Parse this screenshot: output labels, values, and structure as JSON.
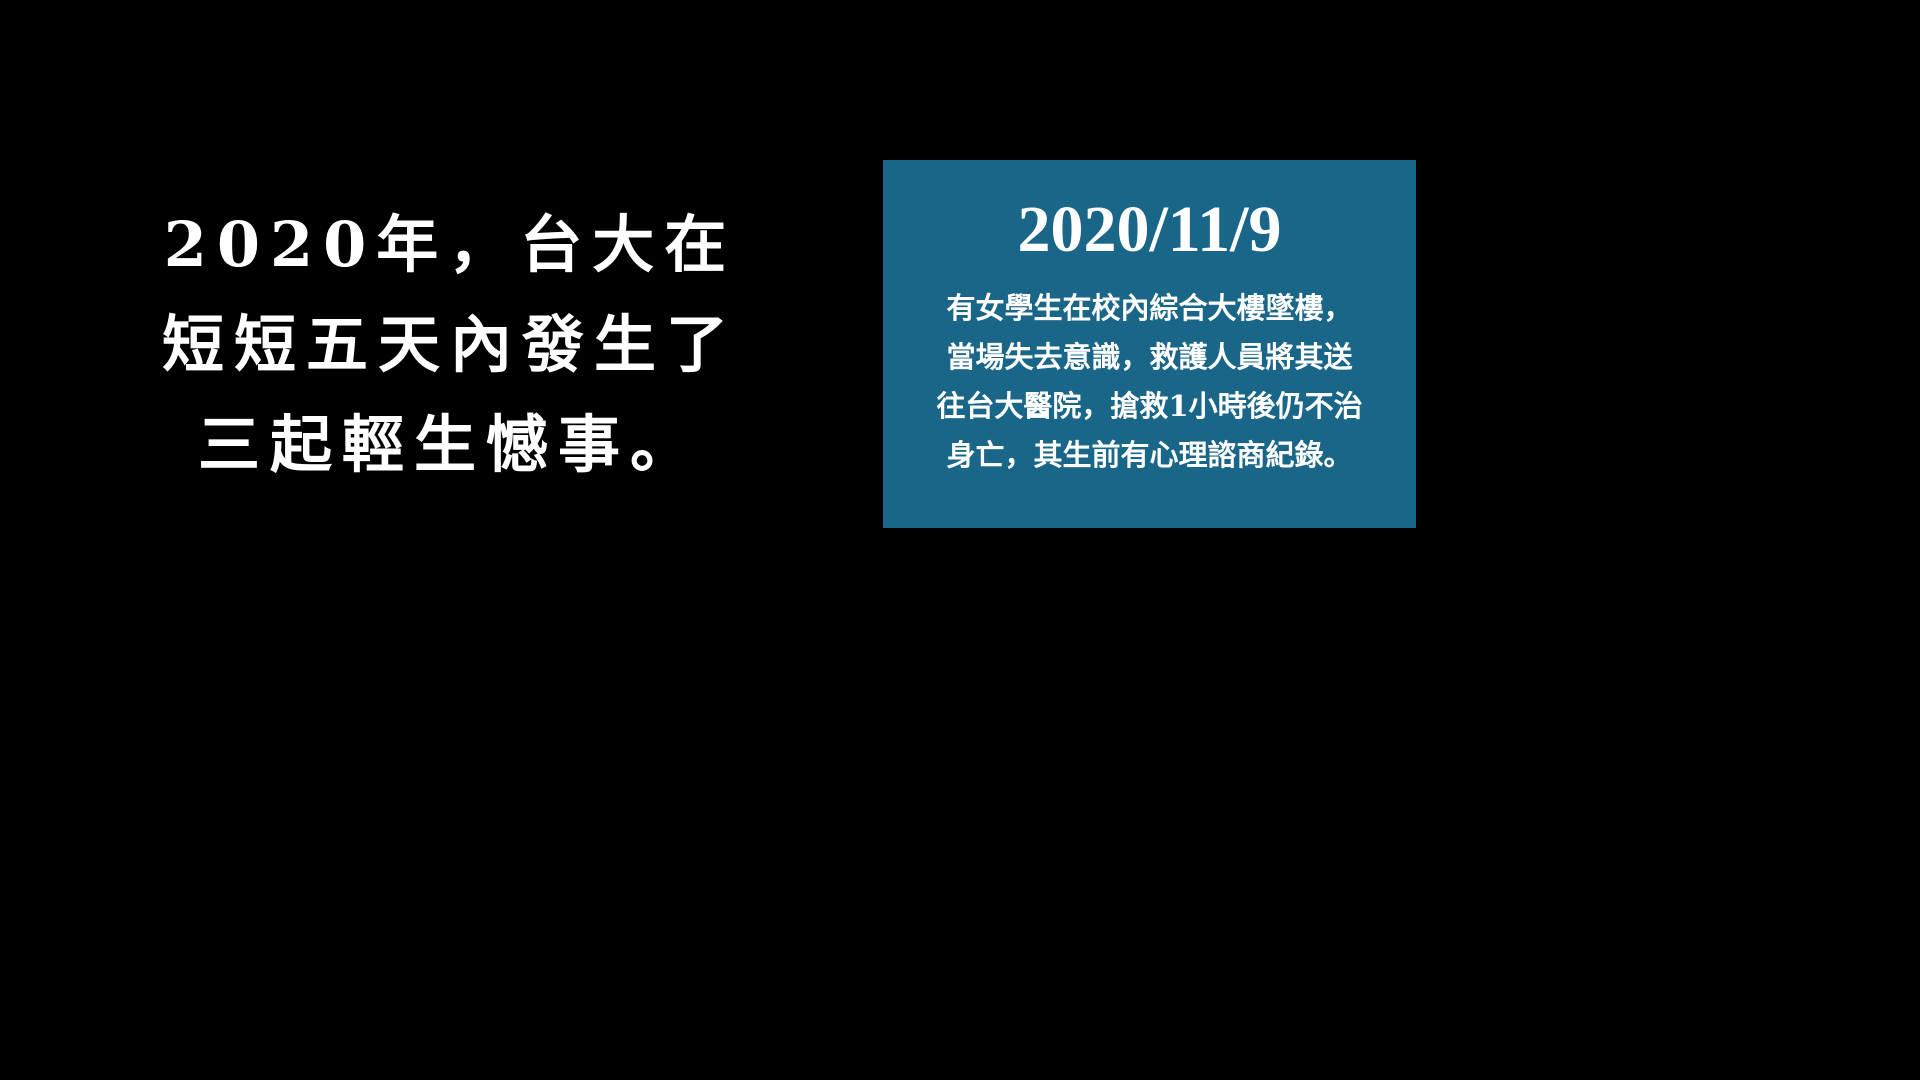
{
  "background_color": "#000000",
  "headline": {
    "lines": [
      "2020年，台大在",
      "短短五天內發生了",
      "三起輕生憾事。"
    ]
  },
  "card": {
    "background_color": "#1a6688",
    "date": "2020/11/9",
    "body_lines": [
      "有女學生在校內綜合大樓墜樓，",
      "當場失去意識，救護人員將其送",
      "往台大醫院，搶救1小時後仍不治",
      "身亡，其生前有心理諮商紀錄。"
    ]
  }
}
